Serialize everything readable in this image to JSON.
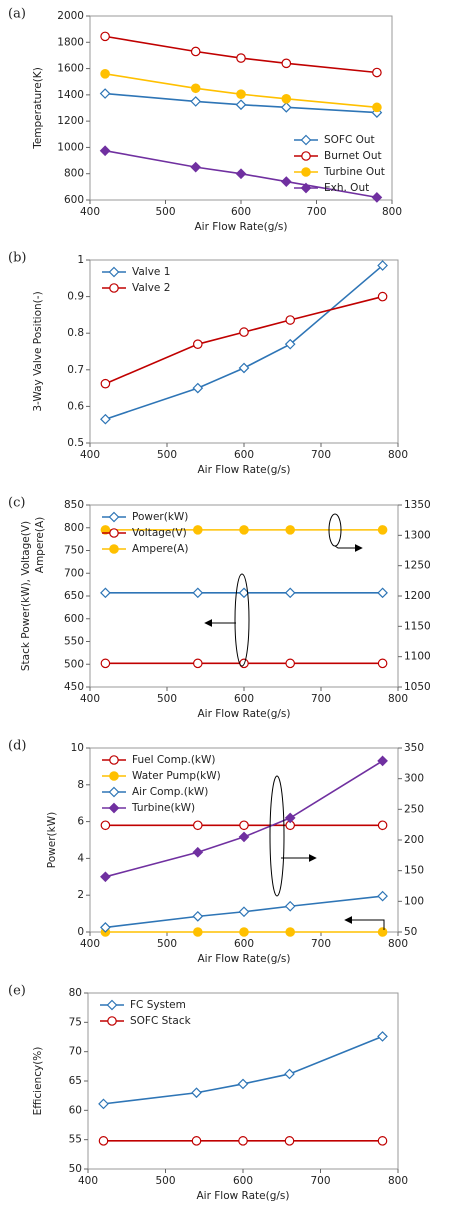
{
  "chart_data": [
    {
      "type": "line",
      "label": "(a)",
      "xlabel": "Air Flow Rate(g/s)",
      "ylabel": "Temperature(K)",
      "x": [
        420,
        540,
        600,
        660,
        780
      ],
      "xlim": [
        400,
        800
      ],
      "xticks": [
        400,
        500,
        600,
        700,
        800
      ],
      "ylim": [
        600,
        2000
      ],
      "yticks": [
        600,
        800,
        1000,
        1200,
        1400,
        1600,
        1800,
        2000
      ],
      "legend": "lower right",
      "series": [
        {
          "name": "SOFC Out",
          "color": "#2e75b6",
          "marker": "diamond-open",
          "values": [
            1410,
            1350,
            1325,
            1305,
            1265
          ]
        },
        {
          "name": "Burnet Out",
          "color": "#c00000",
          "marker": "circle-open",
          "values": [
            1845,
            1730,
            1680,
            1640,
            1570
          ]
        },
        {
          "name": "Turbine Out",
          "color": "#ffc000",
          "marker": "circle",
          "values": [
            1560,
            1450,
            1405,
            1370,
            1305
          ]
        },
        {
          "name": "Exh. Out",
          "color": "#7030a0",
          "marker": "diamond",
          "values": [
            975,
            850,
            800,
            740,
            620
          ]
        }
      ]
    },
    {
      "type": "line",
      "label": "(b)",
      "xlabel": "Air Flow Rate(g/s)",
      "ylabel": "3-Way Valve Position(-)",
      "x": [
        420,
        540,
        600,
        660,
        780
      ],
      "xlim": [
        400,
        800
      ],
      "xticks": [
        400,
        500,
        600,
        700,
        800
      ],
      "ylim": [
        0.5,
        1
      ],
      "yticks": [
        0.5,
        0.6,
        0.7,
        0.8,
        0.9,
        1
      ],
      "legend": "upper left",
      "series": [
        {
          "name": "Valve 1",
          "color": "#2e75b6",
          "marker": "diamond-open",
          "values": [
            0.565,
            0.65,
            0.705,
            0.77,
            0.985
          ]
        },
        {
          "name": "Valve 2",
          "color": "#c00000",
          "marker": "circle-open",
          "values": [
            0.662,
            0.77,
            0.803,
            0.836,
            0.9
          ]
        }
      ]
    },
    {
      "type": "line",
      "label": "(c)",
      "xlabel": "Air Flow Rate(g/s)",
      "ylabel": "Stack Power(kW), Voltage(V)",
      "y2label": "Ampere(A)",
      "x": [
        420,
        540,
        600,
        660,
        780
      ],
      "xlim": [
        400,
        800
      ],
      "xticks": [
        400,
        500,
        600,
        700,
        800
      ],
      "ylim": [
        450,
        850
      ],
      "yticks": [
        450,
        500,
        550,
        600,
        650,
        700,
        750,
        800,
        850
      ],
      "y2lim": [
        1050,
        1350
      ],
      "y2ticks": [
        1050,
        1100,
        1150,
        1200,
        1250,
        1300,
        1350
      ],
      "legend": "upper left",
      "series": [
        {
          "name": "Power(kW)",
          "color": "#2e75b6",
          "marker": "diamond-open",
          "values": [
            657,
            657,
            657,
            657,
            657
          ]
        },
        {
          "name": "Voltage(V)",
          "color": "#c00000",
          "marker": "circle-open",
          "values": [
            502,
            502,
            502,
            502,
            502
          ]
        },
        {
          "name": "Ampere(A)",
          "color": "#ffc000",
          "marker": "circle",
          "axis": "y2",
          "values": [
            1309,
            1309,
            1309,
            1309,
            1309
          ]
        }
      ]
    },
    {
      "type": "line",
      "label": "(d)",
      "xlabel": "Air Flow Rate(g/s)",
      "ylabel": "Power(kW)",
      "x": [
        420,
        540,
        600,
        660,
        780
      ],
      "xlim": [
        400,
        800
      ],
      "xticks": [
        400,
        500,
        600,
        700,
        800
      ],
      "ylim": [
        0,
        10
      ],
      "yticks": [
        0,
        2,
        4,
        6,
        8,
        10
      ],
      "y2lim": [
        50,
        350
      ],
      "y2ticks": [
        50,
        100,
        150,
        200,
        250,
        300,
        350
      ],
      "legend": "upper left",
      "series": [
        {
          "name": "Fuel Comp.(kW)",
          "color": "#c00000",
          "marker": "circle-open",
          "axis": "y2",
          "values": [
            224,
            224,
            224,
            224,
            224
          ]
        },
        {
          "name": "Water Pump(kW)",
          "color": "#ffc000",
          "marker": "circle",
          "values": [
            0,
            0,
            0,
            0,
            0
          ]
        },
        {
          "name": "Air Comp.(kW)",
          "color": "#2e75b6",
          "marker": "diamond-open",
          "values": [
            0.25,
            0.85,
            1.1,
            1.4,
            1.95
          ]
        },
        {
          "name": "Turbine(kW)",
          "color": "#7030a0",
          "marker": "diamond",
          "axis": "y2",
          "values": [
            140,
            180,
            205,
            236,
            329
          ]
        }
      ]
    },
    {
      "type": "line",
      "label": "(e)",
      "xlabel": "Air Flow Rate(g/s)",
      "ylabel": "Efficiency(%)",
      "x": [
        420,
        540,
        600,
        660,
        780
      ],
      "xlim": [
        400,
        800
      ],
      "xticks": [
        400,
        500,
        600,
        700,
        800
      ],
      "ylim": [
        50,
        80
      ],
      "yticks": [
        50,
        55,
        60,
        65,
        70,
        75,
        80
      ],
      "legend": "upper left",
      "series": [
        {
          "name": "FC System",
          "color": "#2e75b6",
          "marker": "diamond-open",
          "values": [
            61.1,
            63,
            64.5,
            66.2,
            72.6
          ]
        },
        {
          "name": "SOFC Stack",
          "color": "#c00000",
          "marker": "circle-open",
          "values": [
            54.8,
            54.8,
            54.8,
            54.8,
            54.8
          ]
        }
      ]
    }
  ]
}
